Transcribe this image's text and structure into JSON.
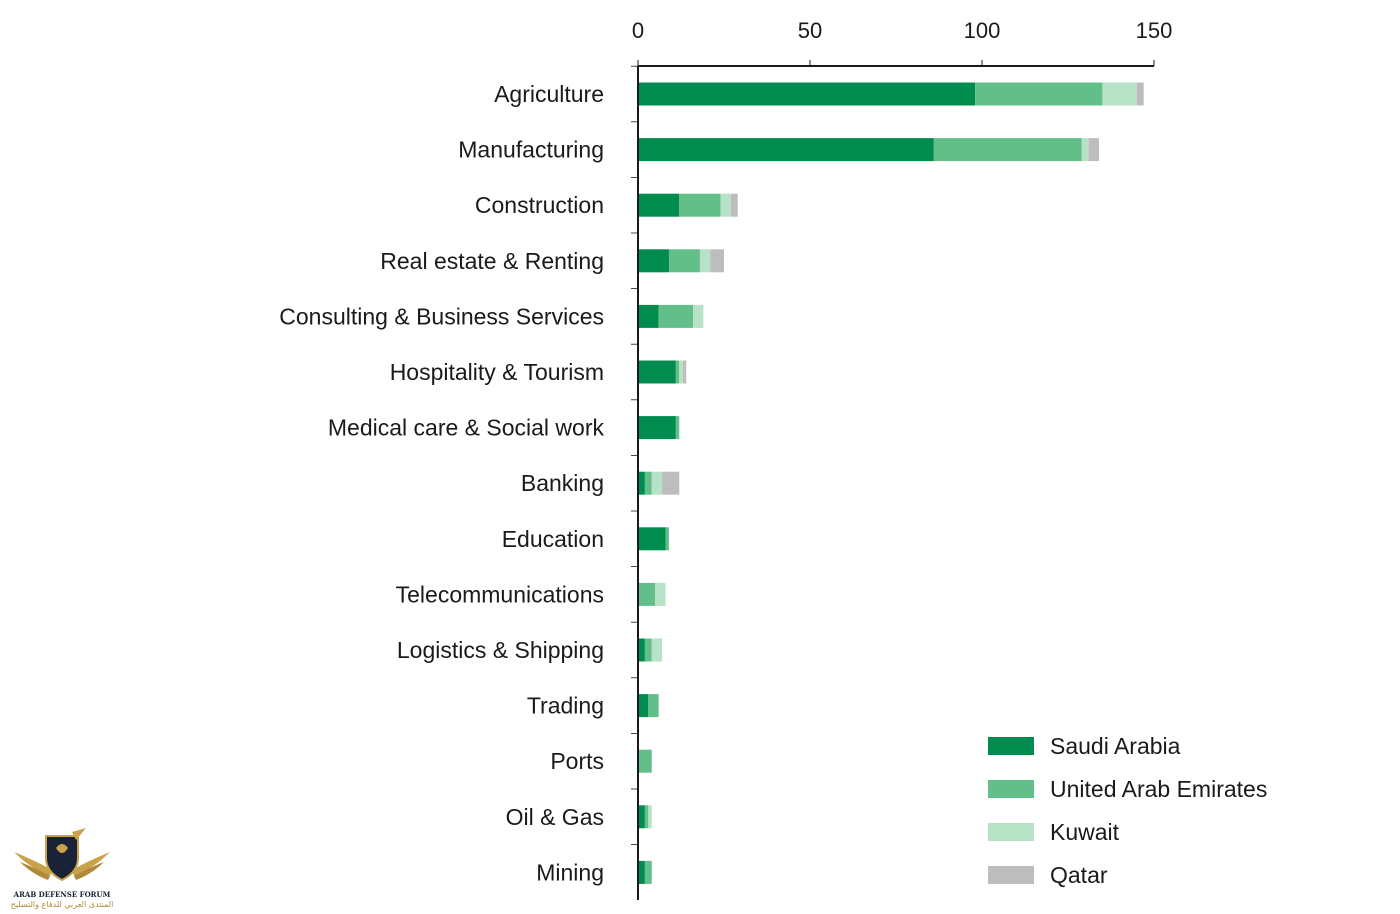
{
  "chart_data": {
    "type": "bar",
    "orientation": "horizontal",
    "stacked": true,
    "title": "",
    "xlabel": "",
    "ylabel": "",
    "xlim": [
      0,
      150
    ],
    "x_ticks": [
      "0",
      "50",
      "100",
      "150"
    ],
    "x_axis_position": "top",
    "grid": false,
    "legend_position": "bottom-right",
    "categories": [
      "Agriculture",
      "Manufacturing",
      "Construction",
      "Real estate & Renting",
      "Consulting & Business Services",
      "Hospitality & Tourism",
      "Medical care & Social work",
      "Banking",
      "Education",
      "Telecommunications",
      "Logistics & Shipping",
      "Trading",
      "Ports",
      "Oil & Gas",
      "Mining"
    ],
    "series": [
      {
        "name": "Saudi Arabia",
        "color": "#008c4f",
        "values": [
          98,
          86,
          12,
          9,
          6,
          11,
          11,
          2,
          8,
          0,
          2,
          3,
          0,
          2,
          2
        ]
      },
      {
        "name": "United Arab Emirates",
        "color": "#63bf8a",
        "values": [
          37,
          43,
          12,
          9,
          10,
          1,
          1,
          2,
          1,
          5,
          2,
          3,
          4,
          1,
          2
        ]
      },
      {
        "name": "Kuwait",
        "color": "#b8e2c5",
        "values": [
          10,
          2,
          3,
          3,
          3,
          1,
          0,
          3,
          0,
          3,
          3,
          0,
          0,
          1,
          0
        ]
      },
      {
        "name": "Qatar",
        "color": "#bdbdbd",
        "values": [
          2,
          3,
          2,
          4,
          0,
          1,
          0,
          5,
          0,
          0,
          0,
          0,
          0,
          0,
          0
        ]
      }
    ]
  },
  "watermark": {
    "logo_letters": "DA",
    "line1": "ARAB DEFENSE FORUM",
    "line2": "المنتدى العربي للدفاع والتسليح"
  }
}
